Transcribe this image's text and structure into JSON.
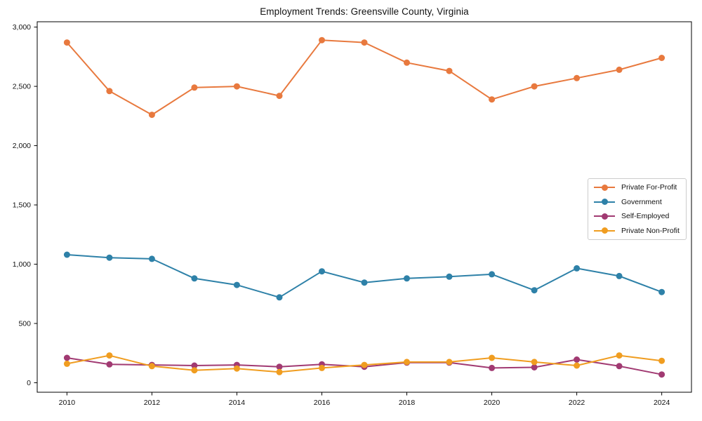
{
  "title": "Employment Trends: Greensville County, Virginia",
  "chart_data": {
    "type": "line",
    "title": "Employment Trends: Greensville County, Virginia",
    "xlabel": "",
    "ylabel": "",
    "x": [
      2010,
      2011,
      2012,
      2013,
      2014,
      2015,
      2016,
      2017,
      2018,
      2019,
      2020,
      2021,
      2022,
      2023,
      2024
    ],
    "series": [
      {
        "name": "Private For-Profit",
        "color": "#e8793e",
        "values": [
          2870,
          2460,
          2260,
          2490,
          2500,
          2420,
          2890,
          2870,
          2700,
          2630,
          2390,
          2500,
          2570,
          2640,
          2740
        ]
      },
      {
        "name": "Government",
        "color": "#2e81a8",
        "values": [
          1080,
          1055,
          1045,
          880,
          825,
          720,
          940,
          845,
          880,
          895,
          915,
          780,
          965,
          900,
          765
        ]
      },
      {
        "name": "Self-Employed",
        "color": "#a13a72",
        "values": [
          210,
          155,
          150,
          145,
          150,
          135,
          155,
          135,
          170,
          170,
          125,
          130,
          195,
          140,
          70
        ]
      },
      {
        "name": "Private Non-Profit",
        "color": "#f09d20",
        "values": [
          160,
          230,
          140,
          105,
          120,
          90,
          125,
          150,
          175,
          175,
          210,
          175,
          145,
          230,
          185
        ]
      }
    ],
    "x_ticks": [
      2010,
      2012,
      2014,
      2016,
      2018,
      2020,
      2022,
      2024
    ],
    "y_ticks": [
      0,
      500,
      1000,
      1500,
      2000,
      2500,
      3000
    ],
    "y_tick_labels": [
      "0",
      "500",
      "1,000",
      "1,500",
      "2,000",
      "2,500",
      "3,000"
    ],
    "xlim": [
      2009.3,
      2024.7
    ],
    "ylim": [
      -80,
      3045
    ],
    "grid": false,
    "legend_position": "center-right",
    "marker": "circle",
    "axis_color": "#000000",
    "tick_label_color": "#111111"
  }
}
